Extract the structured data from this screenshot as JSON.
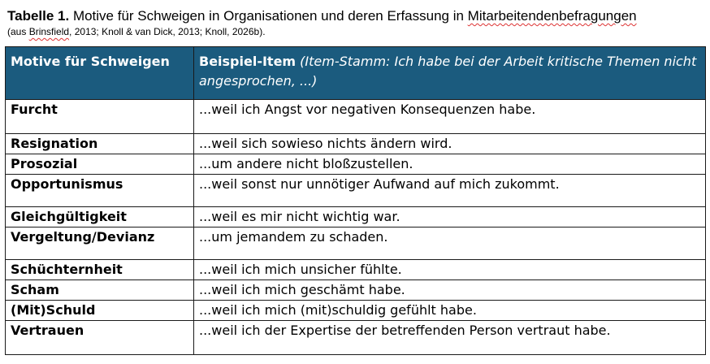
{
  "caption": {
    "label": "Tabelle 1.",
    "title_main": " Motive für Schweigen in Organisationen und deren Erfassung in ",
    "title_last": "Mitarbeitendenbefragungen",
    "source_prefix": "(aus ",
    "source_author": "Brinsfield",
    "source_rest": ", 2013; Knoll & van Dick, 2013; Knoll, 2026b)."
  },
  "table": {
    "header": {
      "col1": "Motive für Schweigen",
      "col2_bold": "Beispiel-Item",
      "col2_italic": " (Item-Stamm: Ich habe bei der Arbeit kritische Themen nicht angesprochen, ...)"
    },
    "rows": [
      {
        "motive": "Furcht",
        "item": "...weil ich Angst vor negativen Konsequenzen habe."
      },
      {
        "motive": "Resignation",
        "item": "...weil sich sowieso nichts ändern wird."
      },
      {
        "motive": "Prosozial",
        "item": "...um andere nicht bloßzustellen."
      },
      {
        "motive": "Opportunismus",
        "item": "...weil sonst nur unnötiger Aufwand auf mich zukommt."
      },
      {
        "motive": "Gleichgültigkeit",
        "item": "...weil es mir nicht wichtig war."
      },
      {
        "motive": "Vergeltung/Devianz",
        "item": "...um jemandem zu schaden."
      },
      {
        "motive": "Schüchternheit",
        "item": "...weil ich mich unsicher fühlte."
      },
      {
        "motive": "Scham",
        "item": "...weil ich mich geschämt habe."
      },
      {
        "motive": "(Mit)Schuld",
        "item": "...weil ich mich (mit)schuldig gefühlt habe."
      },
      {
        "motive": "Vertrauen",
        "item": "...weil ich der Expertise der betreffenden Person vertraut habe."
      }
    ]
  }
}
